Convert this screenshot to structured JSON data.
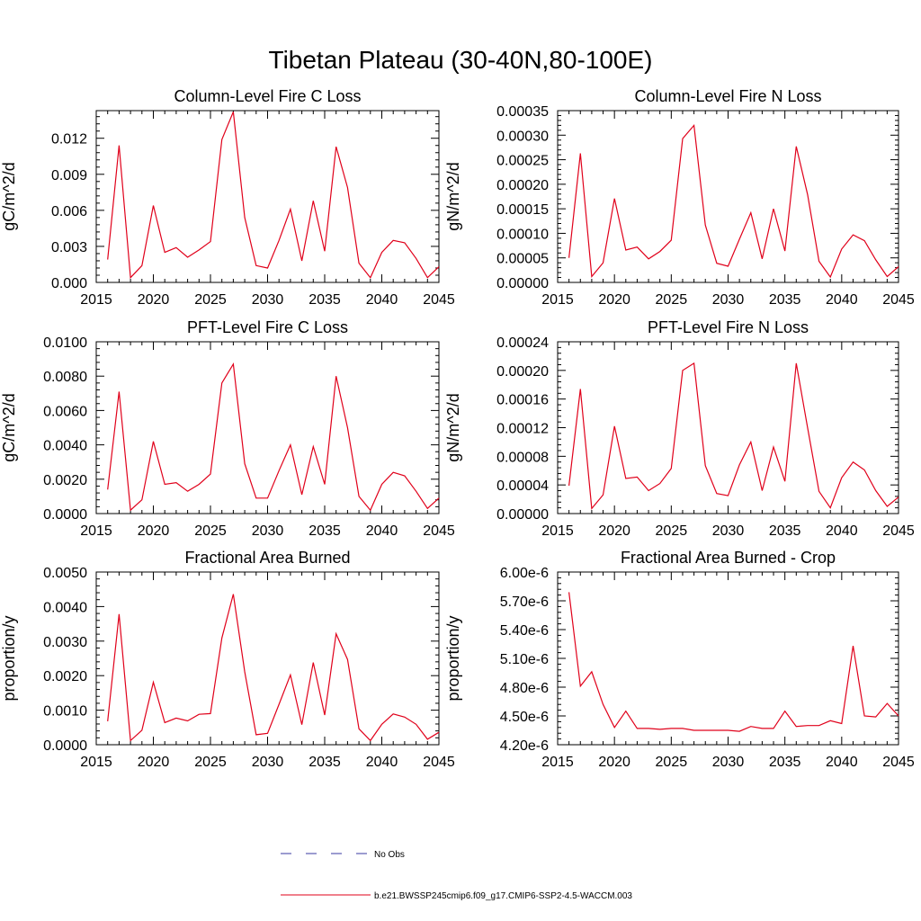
{
  "figure_title": "Tibetan Plateau (30-40N,80-100E)",
  "line_color": "#e0001a",
  "obs_color": "#3a3aa0",
  "legend": {
    "obs_label": "No Obs",
    "model_label": "b.e21.BWSSP245cmip6.f09_g17.CMIP6-SSP2-4.5-WACCM.003"
  },
  "chart_data": [
    {
      "type": "line",
      "title": "Column-Level Fire C Loss",
      "ylabel": "gC/m^2/d",
      "xlim": [
        2015,
        2045
      ],
      "ylim": [
        0,
        0.0143
      ],
      "xticks": [
        2015,
        2020,
        2025,
        2030,
        2035,
        2040,
        2045
      ],
      "xtick_labels": [
        "2015",
        "2020",
        "2025",
        "2030",
        "2035",
        "2040",
        "2045"
      ],
      "yticks": [
        0,
        0.003,
        0.006,
        0.009,
        0.012
      ],
      "ytick_labels": [
        "0.000",
        "0.003",
        "0.006",
        "0.009",
        "0.012"
      ],
      "x": [
        2016,
        2017,
        2018,
        2019,
        2020,
        2021,
        2022,
        2023,
        2024,
        2025,
        2026,
        2027,
        2028,
        2029,
        2030,
        2031,
        2032,
        2033,
        2034,
        2035,
        2036,
        2037,
        2038,
        2039,
        2040,
        2041,
        2042,
        2043,
        2044,
        2045
      ],
      "values": [
        0.0019,
        0.0114,
        0.0004,
        0.0014,
        0.0064,
        0.0025,
        0.0029,
        0.0021,
        0.0027,
        0.0034,
        0.0119,
        0.0142,
        0.0054,
        0.0014,
        0.0012,
        0.0035,
        0.0061,
        0.0018,
        0.0068,
        0.0026,
        0.0113,
        0.0079,
        0.0016,
        0.0004,
        0.0025,
        0.0035,
        0.0033,
        0.002,
        0.0004,
        0.0013
      ]
    },
    {
      "type": "line",
      "title": "Column-Level Fire N Loss",
      "ylabel": "gN/m^2/d",
      "xlim": [
        2015,
        2045
      ],
      "ylim": [
        0,
        0.00035
      ],
      "xticks": [
        2015,
        2020,
        2025,
        2030,
        2035,
        2040,
        2045
      ],
      "xtick_labels": [
        "2015",
        "2020",
        "2025",
        "2030",
        "2035",
        "2040",
        "2045"
      ],
      "yticks": [
        0,
        5e-05,
        0.0001,
        0.00015,
        0.0002,
        0.00025,
        0.0003,
        0.00035
      ],
      "ytick_labels": [
        "0.00000",
        "0.00005",
        "0.00010",
        "0.00015",
        "0.00020",
        "0.00025",
        "0.00030",
        "0.00035"
      ],
      "x": [
        2016,
        2017,
        2018,
        2019,
        2020,
        2021,
        2022,
        2023,
        2024,
        2025,
        2026,
        2027,
        2028,
        2029,
        2030,
        2031,
        2032,
        2033,
        2034,
        2035,
        2036,
        2037,
        2038,
        2039,
        2040,
        2041,
        2042,
        2043,
        2044,
        2045
      ],
      "values": [
        5e-05,
        0.000263,
        1.2e-05,
        4e-05,
        0.000171,
        6.6e-05,
        7.2e-05,
        4.8e-05,
        6.3e-05,
        8.6e-05,
        0.000293,
        0.00032,
        0.000117,
        3.9e-05,
        3.3e-05,
        8.8e-05,
        0.000142,
        4.8e-05,
        0.00015,
        6.4e-05,
        0.000277,
        0.000179,
        4.3e-05,
        1.1e-05,
        6.8e-05,
        9.7e-05,
        8.5e-05,
        4.6e-05,
        1.2e-05,
        3.2e-05
      ]
    },
    {
      "type": "line",
      "title": "PFT-Level Fire C Loss",
      "ylabel": "gC/m^2/d",
      "xlim": [
        2015,
        2045
      ],
      "ylim": [
        0,
        0.01
      ],
      "xticks": [
        2015,
        2020,
        2025,
        2030,
        2035,
        2040,
        2045
      ],
      "xtick_labels": [
        "2015",
        "2020",
        "2025",
        "2030",
        "2035",
        "2040",
        "2045"
      ],
      "yticks": [
        0,
        0.002,
        0.004,
        0.006,
        0.008,
        0.01
      ],
      "ytick_labels": [
        "0.0000",
        "0.0020",
        "0.0040",
        "0.0060",
        "0.0080",
        "0.0100"
      ],
      "x": [
        2016,
        2017,
        2018,
        2019,
        2020,
        2021,
        2022,
        2023,
        2024,
        2025,
        2026,
        2027,
        2028,
        2029,
        2030,
        2031,
        2032,
        2033,
        2034,
        2035,
        2036,
        2037,
        2038,
        2039,
        2040,
        2041,
        2042,
        2043,
        2044,
        2045
      ],
      "values": [
        0.0014,
        0.0071,
        0.0002,
        0.0008,
        0.0042,
        0.0017,
        0.0018,
        0.0013,
        0.0017,
        0.0023,
        0.0076,
        0.0087,
        0.0029,
        0.0009,
        0.0009,
        0.0025,
        0.004,
        0.0011,
        0.0039,
        0.0017,
        0.008,
        0.005,
        0.001,
        0.0002,
        0.0017,
        0.0024,
        0.0022,
        0.0013,
        0.0003,
        0.0009
      ]
    },
    {
      "type": "line",
      "title": "PFT-Level Fire N Loss",
      "ylabel": "gN/m^2/d",
      "xlim": [
        2015,
        2045
      ],
      "ylim": [
        0,
        0.00024
      ],
      "xticks": [
        2015,
        2020,
        2025,
        2030,
        2035,
        2040,
        2045
      ],
      "xtick_labels": [
        "2015",
        "2020",
        "2025",
        "2030",
        "2035",
        "2040",
        "2045"
      ],
      "yticks": [
        0,
        4e-05,
        8e-05,
        0.00012,
        0.00016,
        0.0002,
        0.00024
      ],
      "ytick_labels": [
        "0.00000",
        "0.00004",
        "0.00008",
        "0.00012",
        "0.00016",
        "0.00020",
        "0.00024"
      ],
      "x": [
        2016,
        2017,
        2018,
        2019,
        2020,
        2021,
        2022,
        2023,
        2024,
        2025,
        2026,
        2027,
        2028,
        2029,
        2030,
        2031,
        2032,
        2033,
        2034,
        2035,
        2036,
        2037,
        2038,
        2039,
        2040,
        2041,
        2042,
        2043,
        2044,
        2045
      ],
      "values": [
        3.9e-05,
        0.000174,
        7e-06,
        2.6e-05,
        0.000122,
        4.9e-05,
        5.1e-05,
        3.2e-05,
        4.2e-05,
        6.3e-05,
        0.0002,
        0.00021,
        6.7e-05,
        2.8e-05,
        2.5e-05,
        6.8e-05,
        0.0001,
        3.2e-05,
        9.3e-05,
        4.5e-05,
        0.00021,
        0.00012,
        3.1e-05,
        8e-06,
        5e-05,
        7.2e-05,
        6.1e-05,
        3.2e-05,
        1e-05,
        2.3e-05
      ]
    },
    {
      "type": "line",
      "title": "Fractional Area Burned",
      "ylabel": "proportion/y",
      "xlim": [
        2015,
        2045
      ],
      "ylim": [
        0,
        0.005
      ],
      "xticks": [
        2015,
        2020,
        2025,
        2030,
        2035,
        2040,
        2045
      ],
      "xtick_labels": [
        "2015",
        "2020",
        "2025",
        "2030",
        "2035",
        "2040",
        "2045"
      ],
      "yticks": [
        0,
        0.001,
        0.002,
        0.003,
        0.004,
        0.005
      ],
      "ytick_labels": [
        "0.0000",
        "0.0010",
        "0.0020",
        "0.0030",
        "0.0040",
        "0.0050"
      ],
      "x": [
        2016,
        2017,
        2018,
        2019,
        2020,
        2021,
        2022,
        2023,
        2024,
        2025,
        2026,
        2027,
        2028,
        2029,
        2030,
        2031,
        2032,
        2033,
        2034,
        2035,
        2036,
        2037,
        2038,
        2039,
        2040,
        2041,
        2042,
        2043,
        2044,
        2045
      ],
      "values": [
        0.00068,
        0.00378,
        0.00012,
        0.00042,
        0.00181,
        0.00064,
        0.00077,
        0.00069,
        0.00088,
        0.0009,
        0.00309,
        0.00436,
        0.00211,
        0.00029,
        0.00033,
        0.00117,
        0.00202,
        0.00058,
        0.00238,
        0.00086,
        0.00321,
        0.00247,
        0.00046,
        0.00012,
        0.00059,
        0.00089,
        0.0008,
        0.00059,
        0.00016,
        0.00036
      ]
    },
    {
      "type": "line",
      "title": "Fractional Area Burned - Crop",
      "ylabel": "proportion/y",
      "xlim": [
        2015,
        2045
      ],
      "ylim": [
        4.2e-06,
        6e-06
      ],
      "xticks": [
        2015,
        2020,
        2025,
        2030,
        2035,
        2040,
        2045
      ],
      "xtick_labels": [
        "2015",
        "2020",
        "2025",
        "2030",
        "2035",
        "2040",
        "2045"
      ],
      "yticks": [
        4.2e-06,
        4.5e-06,
        4.8e-06,
        5.1e-06,
        5.4e-06,
        5.7e-06,
        6e-06
      ],
      "ytick_labels": [
        "4.20e-6",
        "4.50e-6",
        "4.80e-6",
        "5.10e-6",
        "5.40e-6",
        "5.70e-6",
        "6.00e-6"
      ],
      "x": [
        2016,
        2017,
        2018,
        2019,
        2020,
        2021,
        2022,
        2023,
        2024,
        2025,
        2026,
        2027,
        2028,
        2029,
        2030,
        2031,
        2032,
        2033,
        2034,
        2035,
        2036,
        2037,
        2038,
        2039,
        2040,
        2041,
        2042,
        2043,
        2044,
        2045
      ],
      "values": [
        5.79e-06,
        4.81e-06,
        4.96e-06,
        4.62e-06,
        4.38e-06,
        4.55e-06,
        4.37e-06,
        4.37e-06,
        4.36e-06,
        4.37e-06,
        4.37e-06,
        4.35e-06,
        4.35e-06,
        4.35e-06,
        4.35e-06,
        4.34e-06,
        4.39e-06,
        4.37e-06,
        4.37e-06,
        4.55e-06,
        4.39e-06,
        4.4e-06,
        4.4e-06,
        4.45e-06,
        4.42e-06,
        5.23e-06,
        4.5e-06,
        4.49e-06,
        4.63e-06,
        4.5e-06
      ]
    }
  ]
}
